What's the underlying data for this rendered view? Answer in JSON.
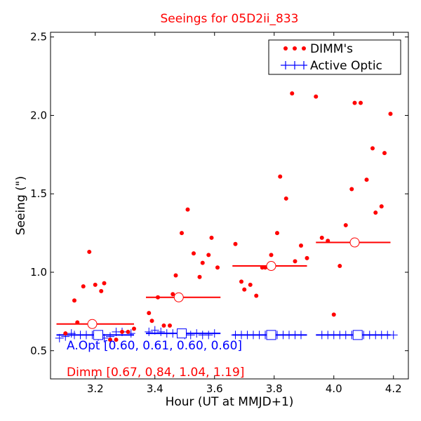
{
  "chart_data": {
    "type": "scatter",
    "title": "Seeings for 05D2ii_833",
    "xlabel": "Hour (UT at MMJD+1)",
    "ylabel": "Seeing (\")",
    "xlim": [
      3.05,
      4.25
    ],
    "ylim": [
      0.32,
      2.53
    ],
    "x_ticks": [
      3.2,
      3.4,
      3.6,
      3.8,
      4.0,
      4.2
    ],
    "x_tick_labels": [
      "3.2",
      "3.4",
      "3.6",
      "3.8",
      "4.0",
      "4.2"
    ],
    "y_ticks": [
      0.5,
      1.0,
      1.5,
      2.0,
      2.5
    ],
    "y_tick_labels": [
      "0.5",
      "1.0",
      "1.5",
      "2.0",
      "2.5"
    ],
    "grid": false,
    "legend_position": "top-right",
    "colors": {
      "dimm": "#ff0000",
      "active_optic": "#0000ff"
    },
    "series": [
      {
        "name": "DIMM's",
        "style": "red-dots",
        "points": [
          [
            3.1,
            0.61
          ],
          [
            3.13,
            0.82
          ],
          [
            3.14,
            0.68
          ],
          [
            3.16,
            0.91
          ],
          [
            3.18,
            1.13
          ],
          [
            3.2,
            0.92
          ],
          [
            3.22,
            0.88
          ],
          [
            3.23,
            0.93
          ],
          [
            3.25,
            0.57
          ],
          [
            3.27,
            0.57
          ],
          [
            3.29,
            0.62
          ],
          [
            3.31,
            0.62
          ],
          [
            3.33,
            0.64
          ],
          [
            3.38,
            0.74
          ],
          [
            3.39,
            0.69
          ],
          [
            3.41,
            0.84
          ],
          [
            3.43,
            0.66
          ],
          [
            3.45,
            0.66
          ],
          [
            3.46,
            0.86
          ],
          [
            3.47,
            0.98
          ],
          [
            3.49,
            1.25
          ],
          [
            3.51,
            1.4
          ],
          [
            3.53,
            1.12
          ],
          [
            3.55,
            0.97
          ],
          [
            3.56,
            1.06
          ],
          [
            3.58,
            1.11
          ],
          [
            3.59,
            1.22
          ],
          [
            3.61,
            1.03
          ],
          [
            3.67,
            1.18
          ],
          [
            3.69,
            0.94
          ],
          [
            3.7,
            0.89
          ],
          [
            3.72,
            0.92
          ],
          [
            3.74,
            0.85
          ],
          [
            3.76,
            1.03
          ],
          [
            3.77,
            1.03
          ],
          [
            3.79,
            1.11
          ],
          [
            3.81,
            1.25
          ],
          [
            3.82,
            1.61
          ],
          [
            3.84,
            1.47
          ],
          [
            3.86,
            2.14
          ],
          [
            3.87,
            1.07
          ],
          [
            3.89,
            1.17
          ],
          [
            3.91,
            1.09
          ],
          [
            3.94,
            2.12
          ],
          [
            3.96,
            1.22
          ],
          [
            3.98,
            1.2
          ],
          [
            4.0,
            0.73
          ],
          [
            4.02,
            1.04
          ],
          [
            4.04,
            1.3
          ],
          [
            4.06,
            1.53
          ],
          [
            4.07,
            2.08
          ],
          [
            4.09,
            2.08
          ],
          [
            4.11,
            1.59
          ],
          [
            4.13,
            1.79
          ],
          [
            4.14,
            1.38
          ],
          [
            4.16,
            1.42
          ],
          [
            4.17,
            1.76
          ],
          [
            4.19,
            2.01
          ]
        ]
      },
      {
        "name": "Active Optic",
        "style": "blue-plus",
        "points": [
          [
            3.08,
            0.58
          ],
          [
            3.1,
            0.59
          ],
          [
            3.12,
            0.61
          ],
          [
            3.13,
            0.6
          ],
          [
            3.15,
            0.6
          ],
          [
            3.17,
            0.6
          ],
          [
            3.19,
            0.6
          ],
          [
            3.21,
            0.59
          ],
          [
            3.23,
            0.58
          ],
          [
            3.25,
            0.59
          ],
          [
            3.27,
            0.62
          ],
          [
            3.29,
            0.62
          ],
          [
            3.32,
            0.61
          ],
          [
            3.38,
            0.62
          ],
          [
            3.4,
            0.63
          ],
          [
            3.42,
            0.62
          ],
          [
            3.44,
            0.61
          ],
          [
            3.46,
            0.61
          ],
          [
            3.48,
            0.61
          ],
          [
            3.5,
            0.6
          ],
          [
            3.52,
            0.6
          ],
          [
            3.54,
            0.61
          ],
          [
            3.56,
            0.6
          ],
          [
            3.58,
            0.6
          ],
          [
            3.6,
            0.61
          ],
          [
            3.67,
            0.6
          ],
          [
            3.69,
            0.6
          ],
          [
            3.71,
            0.6
          ],
          [
            3.73,
            0.6
          ],
          [
            3.75,
            0.6
          ],
          [
            3.77,
            0.6
          ],
          [
            3.79,
            0.6
          ],
          [
            3.81,
            0.6
          ],
          [
            3.83,
            0.6
          ],
          [
            3.85,
            0.6
          ],
          [
            3.87,
            0.6
          ],
          [
            3.89,
            0.6
          ],
          [
            3.96,
            0.6
          ],
          [
            3.98,
            0.6
          ],
          [
            4.0,
            0.6
          ],
          [
            4.02,
            0.6
          ],
          [
            4.04,
            0.6
          ],
          [
            4.06,
            0.6
          ],
          [
            4.08,
            0.6
          ],
          [
            4.1,
            0.6
          ],
          [
            4.12,
            0.6
          ],
          [
            4.14,
            0.6
          ],
          [
            4.16,
            0.6
          ],
          [
            4.18,
            0.6
          ],
          [
            4.2,
            0.6
          ]
        ]
      }
    ],
    "bin_means": {
      "dimm": [
        {
          "x0": 3.07,
          "x1": 3.33,
          "xc": 3.19,
          "y": 0.67
        },
        {
          "x0": 3.37,
          "x1": 3.62,
          "xc": 3.48,
          "y": 0.84
        },
        {
          "x0": 3.66,
          "x1": 3.91,
          "xc": 3.79,
          "y": 1.04
        },
        {
          "x0": 3.94,
          "x1": 4.19,
          "xc": 4.07,
          "y": 1.19
        }
      ],
      "active_optic": [
        {
          "x0": 3.07,
          "x1": 3.33,
          "xc": 3.21,
          "y": 0.6
        },
        {
          "x0": 3.37,
          "x1": 3.62,
          "xc": 3.49,
          "y": 0.61
        },
        {
          "x0": 3.66,
          "x1": 3.91,
          "xc": 3.79,
          "y": 0.6
        },
        {
          "x0": 3.94,
          "x1": 4.19,
          "xc": 4.08,
          "y": 0.6
        }
      ]
    },
    "annotations": {
      "aopt": "A.Opt [0.60, 0.61, 0.60, 0.60]",
      "dimm": "Dimm [0.67, 0.84, 1.04, 1.19]"
    }
  }
}
